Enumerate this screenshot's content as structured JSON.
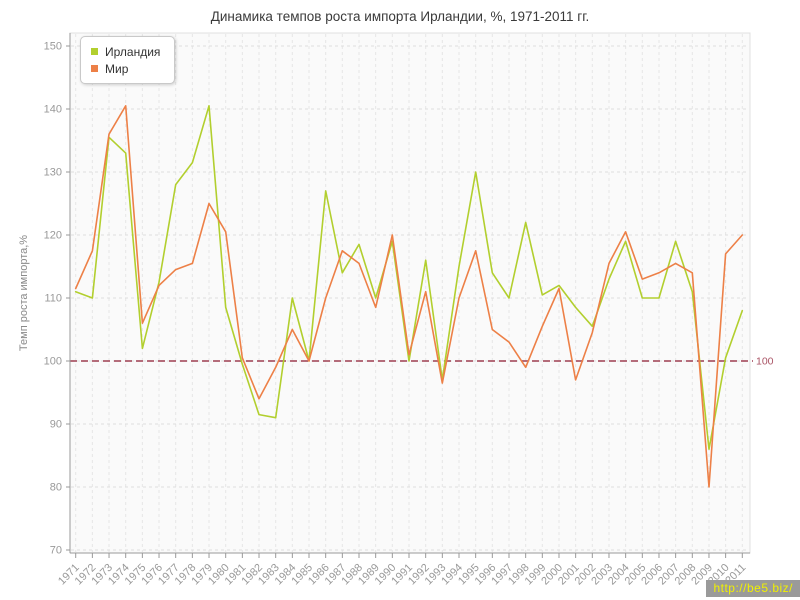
{
  "title": "Динамика темпов роста импорта Ирландии, %, 1971-2011 гг.",
  "watermark": "http://be5.biz/",
  "chart_data": {
    "type": "line",
    "title": "Динамика темпов роста импорта Ирландии, %, 1971-2011 гг.",
    "xlabel": "",
    "ylabel": "Темп роста импорта,%",
    "ylim": [
      70,
      150
    ],
    "yticks": [
      70,
      80,
      90,
      100,
      110,
      120,
      130,
      140,
      150
    ],
    "grid": true,
    "legend_position": "top-left",
    "reference_line": {
      "value": 100,
      "label": "100",
      "color": "#aa5566"
    },
    "categories": [
      1971,
      1972,
      1973,
      1974,
      1975,
      1976,
      1977,
      1978,
      1979,
      1980,
      1981,
      1982,
      1983,
      1984,
      1985,
      1986,
      1987,
      1988,
      1989,
      1990,
      1991,
      1992,
      1993,
      1994,
      1995,
      1996,
      1997,
      1998,
      1999,
      2000,
      2001,
      2002,
      2003,
      2004,
      2005,
      2006,
      2007,
      2008,
      2009,
      2010,
      2011
    ],
    "series": [
      {
        "name": "Ирландия",
        "color": "#b2cf2e",
        "values": [
          111,
          110,
          135.5,
          133,
          102,
          112.5,
          128,
          131.5,
          140.5,
          108.5,
          99.5,
          91.5,
          91,
          110,
          100,
          127,
          114,
          118.5,
          110,
          119,
          100,
          116,
          97,
          115,
          130,
          114,
          110,
          122,
          110.5,
          112,
          108.5,
          105.5,
          113,
          119,
          110,
          110,
          119,
          111,
          86,
          100.5,
          108
        ]
      },
      {
        "name": "Мир",
        "color": "#ed8047",
        "values": [
          111.5,
          117.5,
          136,
          140.5,
          106,
          112,
          114.5,
          115.5,
          125,
          120.5,
          100.5,
          94,
          99,
          105,
          100,
          110,
          117.5,
          115.5,
          108.5,
          120,
          101,
          111,
          96.5,
          110,
          117.5,
          105,
          103,
          99,
          105.5,
          111.5,
          97,
          104.5,
          115.5,
          120.5,
          113,
          114,
          115.5,
          114,
          80,
          117,
          120
        ]
      }
    ]
  }
}
